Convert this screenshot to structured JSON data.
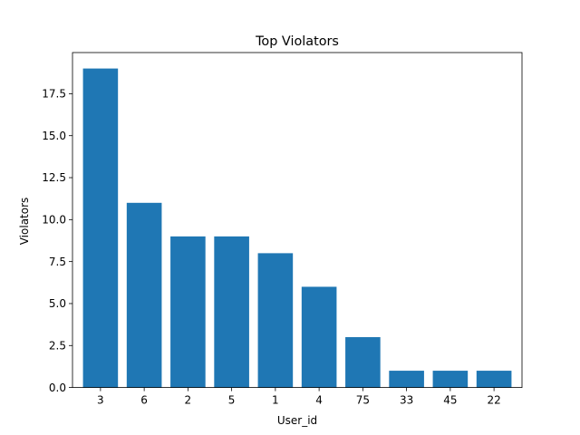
{
  "chart_data": {
    "type": "bar",
    "title": "Top Violators",
    "xlabel": "User_id",
    "ylabel": "Violators",
    "categories": [
      "3",
      "6",
      "2",
      "5",
      "1",
      "4",
      "75",
      "33",
      "45",
      "22"
    ],
    "values": [
      19,
      11,
      9,
      9,
      8,
      6,
      3,
      1,
      1,
      1
    ],
    "ylim": [
      0,
      19.95
    ],
    "yticks": [
      "0.0",
      "2.5",
      "5.0",
      "7.5",
      "10.0",
      "12.5",
      "15.0",
      "17.5"
    ],
    "bar_color": "#1f77b4",
    "grid": false
  }
}
